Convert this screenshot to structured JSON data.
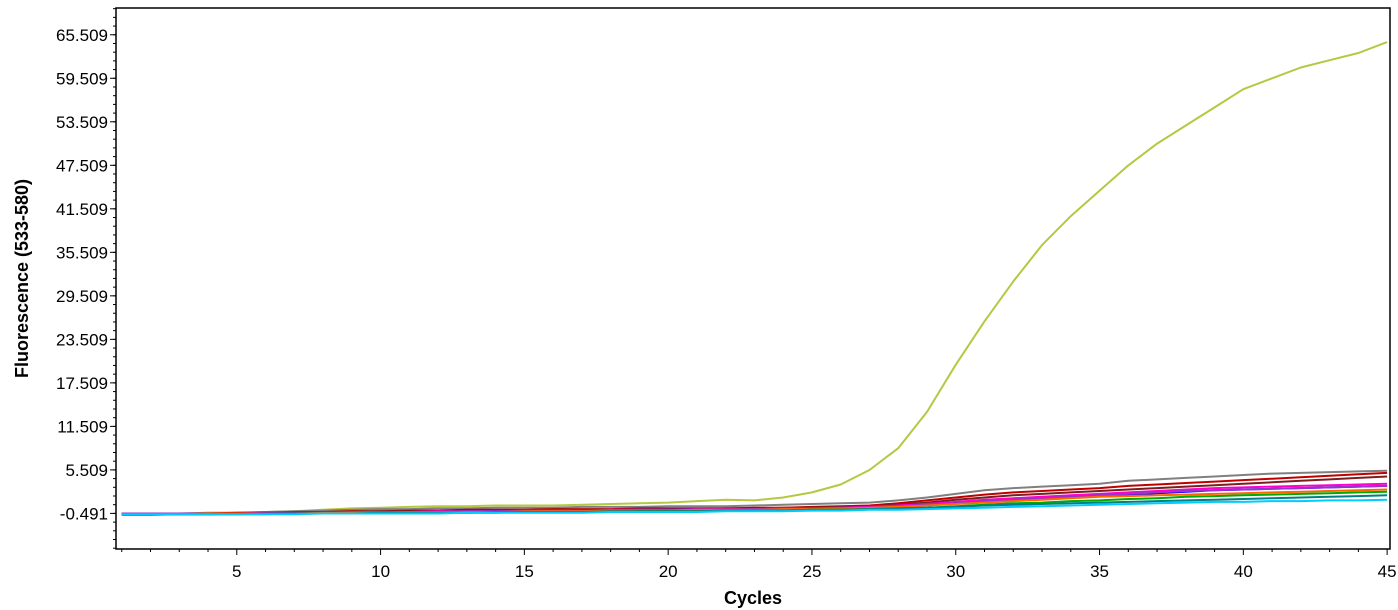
{
  "chart_data": {
    "type": "line",
    "title": "",
    "xlabel": "Cycles",
    "ylabel": "Fluorescence (533-580)",
    "xlim": [
      0.8,
      45.1
    ],
    "ylim": [
      -5.4,
      69.2
    ],
    "xticks": [
      5,
      10,
      15,
      20,
      25,
      30,
      35,
      40,
      45
    ],
    "yticks": [
      -0.491,
      5.509,
      11.509,
      17.509,
      23.509,
      29.509,
      35.509,
      41.509,
      47.509,
      53.509,
      59.509,
      65.509
    ],
    "ytick_labels": [
      "-0.491",
      "5.509",
      "11.509",
      "17.509",
      "23.509",
      "29.509",
      "35.509",
      "41.509",
      "47.509",
      "53.509",
      "59.509",
      "65.509"
    ],
    "grid": false,
    "legend": "none",
    "x": [
      1,
      2,
      3,
      4,
      5,
      6,
      7,
      8,
      9,
      10,
      11,
      12,
      13,
      14,
      15,
      16,
      17,
      18,
      19,
      20,
      21,
      22,
      23,
      24,
      25,
      26,
      27,
      28,
      29,
      30,
      31,
      32,
      33,
      34,
      35,
      36,
      37,
      38,
      39,
      40,
      41,
      42,
      43,
      44,
      45
    ],
    "series": [
      {
        "color": "#b5c842",
        "values": [
          -0.6,
          -0.6,
          -0.5,
          -0.5,
          -0.5,
          -0.3,
          -0.2,
          0.0,
          0.2,
          0.3,
          0.4,
          0.5,
          0.5,
          0.6,
          0.6,
          0.6,
          0.7,
          0.8,
          0.9,
          1.0,
          1.2,
          1.4,
          1.3,
          1.7,
          2.4,
          3.5,
          5.5,
          8.5,
          13.5,
          20.0,
          26.0,
          31.5,
          36.5,
          40.5,
          44.0,
          47.5,
          50.5,
          53.0,
          55.5,
          58.0,
          59.5,
          61.0,
          62.0,
          63.0,
          64.5
        ]
      },
      {
        "color": "#808080",
        "values": [
          -0.5,
          -0.5,
          -0.5,
          -0.4,
          -0.4,
          -0.3,
          -0.2,
          -0.1,
          0.0,
          0.1,
          0.1,
          0.2,
          0.2,
          0.3,
          0.3,
          0.3,
          0.4,
          0.4,
          0.4,
          0.5,
          0.5,
          0.5,
          0.6,
          0.7,
          0.8,
          0.9,
          1.0,
          1.3,
          1.7,
          2.2,
          2.7,
          3.0,
          3.2,
          3.4,
          3.6,
          4.0,
          4.2,
          4.4,
          4.6,
          4.8,
          5.0,
          5.1,
          5.2,
          5.3,
          5.4
        ]
      },
      {
        "color": "#c00000",
        "values": [
          -0.5,
          -0.5,
          -0.5,
          -0.5,
          -0.4,
          -0.4,
          -0.3,
          -0.3,
          -0.2,
          -0.2,
          -0.1,
          -0.1,
          0.0,
          0.0,
          0.0,
          0.1,
          0.1,
          0.1,
          0.2,
          0.2,
          0.2,
          0.2,
          0.3,
          0.3,
          0.4,
          0.5,
          0.6,
          0.9,
          1.3,
          1.7,
          2.1,
          2.4,
          2.6,
          2.8,
          3.0,
          3.3,
          3.5,
          3.7,
          3.9,
          4.1,
          4.3,
          4.5,
          4.7,
          4.9,
          5.1
        ]
      },
      {
        "color": "#7a1e1e",
        "values": [
          -0.6,
          -0.6,
          -0.5,
          -0.5,
          -0.5,
          -0.4,
          -0.4,
          -0.3,
          -0.3,
          -0.2,
          -0.2,
          -0.2,
          -0.1,
          -0.1,
          -0.1,
          0.0,
          0.0,
          0.0,
          0.1,
          0.1,
          0.1,
          0.2,
          0.2,
          0.3,
          0.3,
          0.4,
          0.5,
          0.7,
          1.0,
          1.4,
          1.7,
          2.0,
          2.2,
          2.4,
          2.6,
          2.8,
          3.0,
          3.2,
          3.4,
          3.6,
          3.8,
          4.0,
          4.2,
          4.4,
          4.6
        ]
      },
      {
        "color": "#ff00cc",
        "values": [
          -0.5,
          -0.5,
          -0.5,
          -0.5,
          -0.5,
          -0.4,
          -0.4,
          -0.4,
          -0.3,
          -0.3,
          -0.3,
          -0.2,
          -0.2,
          -0.2,
          -0.1,
          -0.1,
          -0.1,
          0.0,
          0.0,
          0.0,
          0.1,
          0.1,
          0.1,
          0.2,
          0.2,
          0.3,
          0.4,
          0.6,
          0.8,
          1.1,
          1.4,
          1.6,
          1.8,
          2.0,
          2.2,
          2.4,
          2.6,
          2.8,
          3.0,
          3.1,
          3.2,
          3.3,
          3.4,
          3.5,
          3.6
        ]
      },
      {
        "color": "#0000ff",
        "values": [
          -0.6,
          -0.6,
          -0.6,
          -0.6,
          -0.5,
          -0.5,
          -0.5,
          -0.4,
          -0.4,
          -0.4,
          -0.3,
          -0.3,
          -0.3,
          -0.2,
          -0.2,
          -0.2,
          -0.1,
          -0.1,
          -0.1,
          0.0,
          0.0,
          0.0,
          0.1,
          0.1,
          0.1,
          0.2,
          0.3,
          0.4,
          0.6,
          0.9,
          1.1,
          1.3,
          1.5,
          1.7,
          1.9,
          2.1,
          2.3,
          2.5,
          2.7,
          2.8,
          2.9,
          3.0,
          3.1,
          3.2,
          3.3
        ]
      },
      {
        "color": "#9933cc",
        "values": [
          -0.5,
          -0.5,
          -0.5,
          -0.5,
          -0.5,
          -0.5,
          -0.4,
          -0.4,
          -0.4,
          -0.3,
          -0.3,
          -0.3,
          -0.2,
          -0.2,
          -0.2,
          -0.1,
          -0.1,
          -0.1,
          0.0,
          0.0,
          0.0,
          0.0,
          0.1,
          0.1,
          0.2,
          0.2,
          0.3,
          0.5,
          0.7,
          0.9,
          1.2,
          1.4,
          1.6,
          1.8,
          2.0,
          2.2,
          2.4,
          2.6,
          2.7,
          2.8,
          2.9,
          3.0,
          3.1,
          3.2,
          3.3
        ]
      },
      {
        "color": "#ff6600",
        "values": [
          -0.6,
          -0.6,
          -0.6,
          -0.5,
          -0.5,
          -0.5,
          -0.5,
          -0.4,
          -0.4,
          -0.4,
          -0.3,
          -0.3,
          -0.3,
          -0.3,
          -0.2,
          -0.2,
          -0.2,
          -0.1,
          -0.1,
          -0.1,
          0.0,
          0.0,
          0.0,
          0.1,
          0.1,
          0.2,
          0.3,
          0.4,
          0.6,
          0.8,
          1.0,
          1.2,
          1.4,
          1.6,
          1.8,
          1.9,
          2.0,
          2.1,
          2.2,
          2.3,
          2.4,
          2.5,
          2.6,
          2.7,
          2.8
        ]
      },
      {
        "color": "#00aa00",
        "values": [
          -0.7,
          -0.7,
          -0.6,
          -0.6,
          -0.6,
          -0.6,
          -0.5,
          -0.5,
          -0.5,
          -0.5,
          -0.4,
          -0.4,
          -0.4,
          -0.4,
          -0.3,
          -0.3,
          -0.3,
          -0.3,
          -0.2,
          -0.2,
          -0.2,
          -0.1,
          -0.1,
          -0.1,
          0.0,
          0.0,
          0.1,
          0.2,
          0.3,
          0.5,
          0.7,
          0.9,
          1.0,
          1.2,
          1.3,
          1.5,
          1.6,
          1.8,
          1.9,
          2.0,
          2.1,
          2.2,
          2.3,
          2.4,
          2.5
        ]
      },
      {
        "color": "#008080",
        "values": [
          -0.6,
          -0.6,
          -0.6,
          -0.6,
          -0.6,
          -0.5,
          -0.5,
          -0.5,
          -0.5,
          -0.4,
          -0.4,
          -0.4,
          -0.4,
          -0.3,
          -0.3,
          -0.3,
          -0.3,
          -0.2,
          -0.2,
          -0.2,
          -0.2,
          -0.1,
          -0.1,
          -0.1,
          0.0,
          0.0,
          0.1,
          0.2,
          0.3,
          0.4,
          0.6,
          0.7,
          0.8,
          0.9,
          1.0,
          1.1,
          1.2,
          1.3,
          1.4,
          1.5,
          1.6,
          1.7,
          1.8,
          1.9,
          2.0
        ]
      },
      {
        "color": "#00ccff",
        "values": [
          -0.6,
          -0.6,
          -0.6,
          -0.6,
          -0.6,
          -0.6,
          -0.6,
          -0.5,
          -0.5,
          -0.5,
          -0.5,
          -0.5,
          -0.4,
          -0.4,
          -0.4,
          -0.4,
          -0.4,
          -0.3,
          -0.3,
          -0.3,
          -0.3,
          -0.2,
          -0.2,
          -0.2,
          -0.1,
          -0.1,
          0.0,
          0.0,
          0.1,
          0.2,
          0.3,
          0.4,
          0.5,
          0.6,
          0.7,
          0.8,
          0.9,
          1.0,
          1.1,
          1.1,
          1.2,
          1.2,
          1.3,
          1.3,
          1.4
        ]
      }
    ]
  }
}
